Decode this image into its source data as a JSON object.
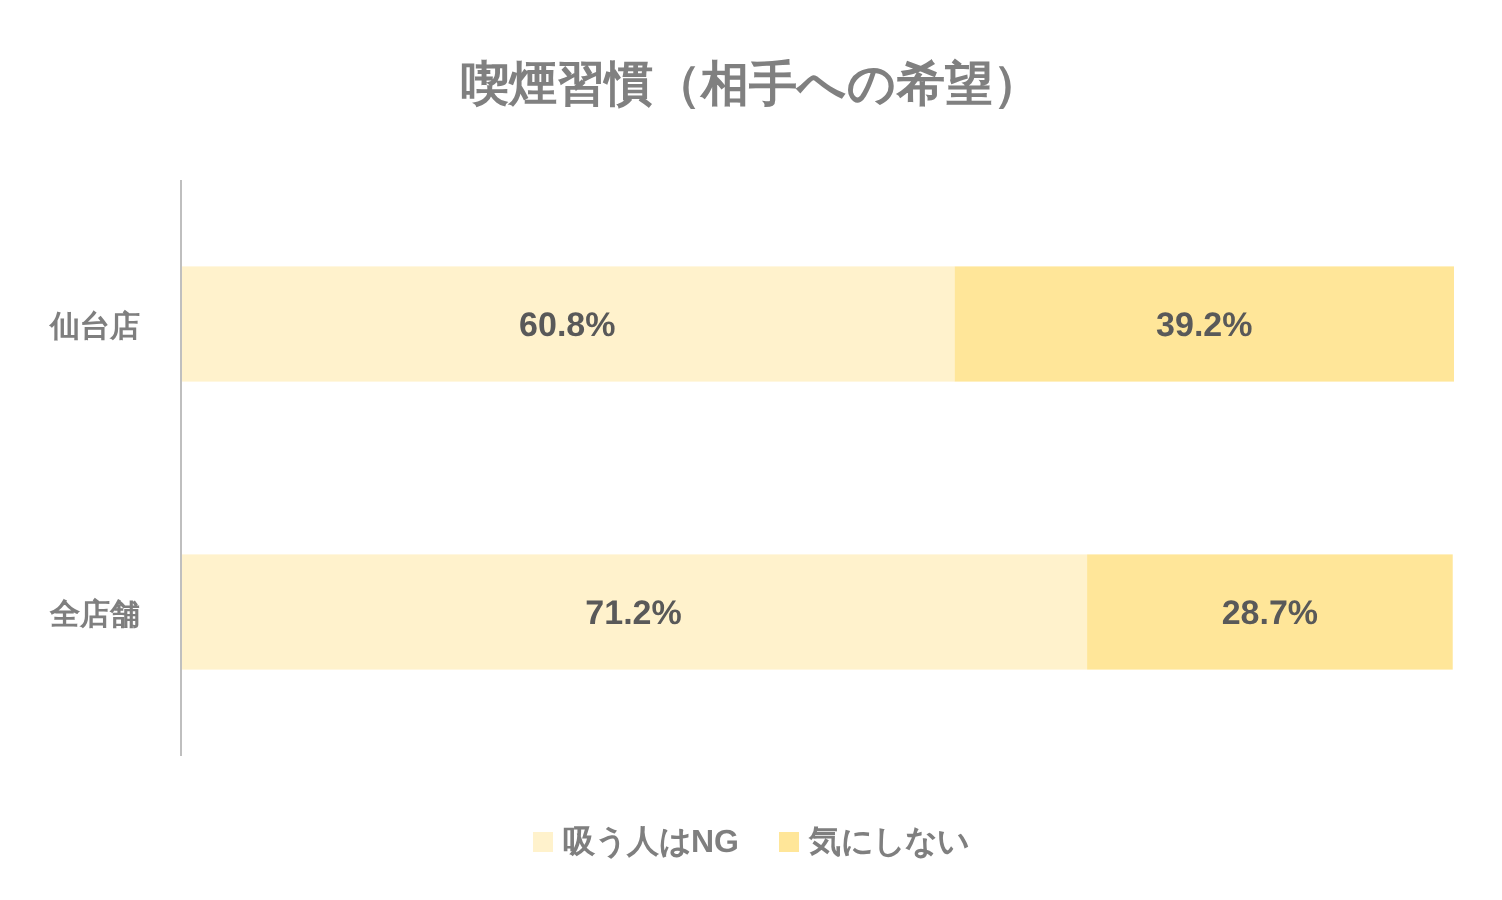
{
  "chart_data": {
    "type": "bar",
    "orientation": "horizontal",
    "stacked": true,
    "title": "喫煙習慣（相手への希望）",
    "categories": [
      "仙台店",
      "全店舗"
    ],
    "series": [
      {
        "name": "吸う人はNG",
        "color": "#fff2cc",
        "values": [
          60.8,
          71.2
        ],
        "value_labels": [
          "60.8%",
          "71.2%"
        ]
      },
      {
        "name": "気にしない",
        "color": "#ffe699",
        "values": [
          39.2,
          28.7
        ],
        "value_labels": [
          "39.2%",
          "28.7%"
        ]
      }
    ],
    "xlim": [
      0,
      100
    ],
    "tick_labels": "y",
    "legend": "bottom"
  }
}
